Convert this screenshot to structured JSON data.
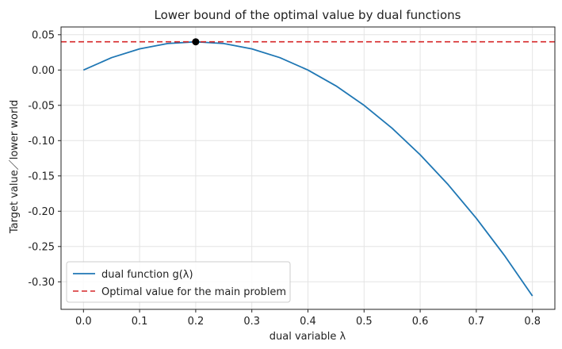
{
  "chart_data": {
    "type": "line",
    "title": "Lower bound of the optimal value by dual functions",
    "xlabel": "dual variable λ",
    "ylabel": "Target value／lower world",
    "xlim": [
      -0.04,
      0.84
    ],
    "ylim": [
      -0.339,
      0.061
    ],
    "x_ticks": [
      0.0,
      0.1,
      0.2,
      0.3,
      0.4,
      0.5,
      0.6,
      0.7,
      0.8
    ],
    "x_tick_labels": [
      "0.0",
      "0.1",
      "0.2",
      "0.3",
      "0.4",
      "0.5",
      "0.6",
      "0.7",
      "0.8"
    ],
    "y_ticks": [
      0.05,
      0.0,
      -0.05,
      -0.1,
      -0.15,
      -0.2,
      -0.25,
      -0.3
    ],
    "y_tick_labels": [
      "0.05",
      "0.00",
      "-0.05",
      "-0.10",
      "-0.15",
      "-0.20",
      "-0.25",
      "-0.30"
    ],
    "grid": true,
    "legend_position": "lower-left",
    "series": [
      {
        "name": "dual function g(λ)",
        "style": "solid",
        "color": "#1f77b4",
        "x": [
          0.0,
          0.05,
          0.1,
          0.15,
          0.2,
          0.25,
          0.3,
          0.35,
          0.4,
          0.45,
          0.5,
          0.55,
          0.6,
          0.65,
          0.7,
          0.75,
          0.8
        ],
        "y": [
          0.0,
          0.0175,
          0.03,
          0.0375,
          0.04,
          0.0375,
          0.03,
          0.0175,
          0.0,
          -0.0225,
          -0.05,
          -0.0825,
          -0.12,
          -0.1625,
          -0.21,
          -0.2625,
          -0.32
        ]
      },
      {
        "name": "Optimal value for the main problem",
        "style": "dashed",
        "color": "#d62728",
        "type": "hline",
        "y": 0.04
      }
    ],
    "points": [
      {
        "x": 0.2,
        "y": 0.04,
        "color": "#000000"
      }
    ]
  }
}
